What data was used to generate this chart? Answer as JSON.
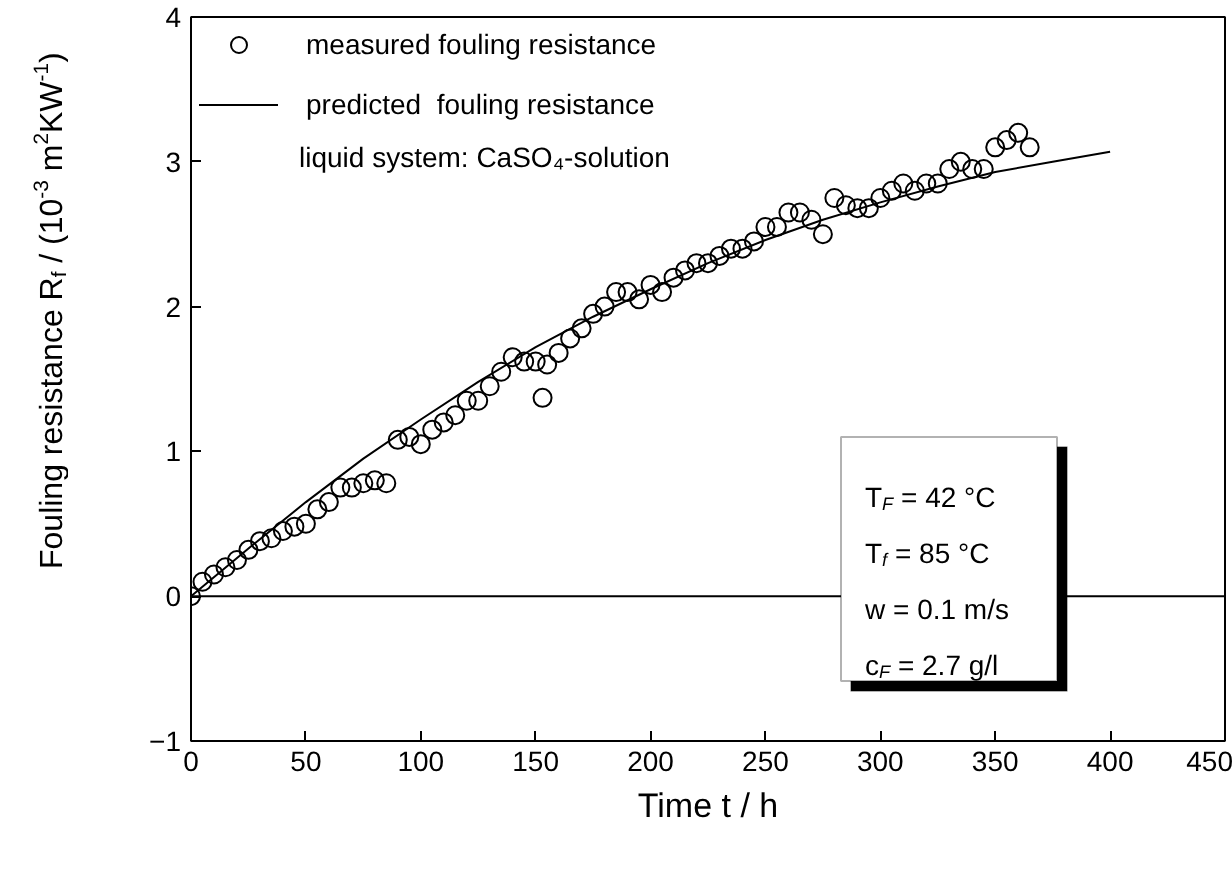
{
  "chart_data": {
    "type": "scatter",
    "xlabel": "Time t / h",
    "ylabel": "Fouling resistance R$_{f}$ / (10$^{-3}$ m$^{2}$KW$^{-1}$)",
    "xlim": [
      0,
      450
    ],
    "xticks": [
      0,
      50,
      100,
      150,
      200,
      250,
      300,
      350,
      400,
      450
    ],
    "ylim": [
      -1,
      4
    ],
    "yticks": [
      -1,
      0,
      1,
      2,
      3,
      4
    ],
    "grid": false,
    "legend": "top left",
    "ref_lines": [
      {
        "axis": "y",
        "value": 0,
        "color": "#000000"
      }
    ],
    "annotations": [
      "liquid system: CaSO₄-solution",
      "T$_{F}$ = 42  °C",
      "T$_{f}$ = 85 °C",
      "w = 0.1  m/s",
      "c$_{F}$ = 2.7 g/l"
    ],
    "series": [
      {
        "name": "measured fouling resistance",
        "color": "#000000",
        "marker": "circle",
        "x": [
          0,
          5,
          10,
          15,
          20,
          25,
          30,
          35,
          40,
          45,
          50,
          55,
          60,
          65,
          70,
          75,
          80,
          85,
          90,
          95,
          100,
          105,
          110,
          115,
          120,
          125,
          130,
          135,
          140,
          145,
          150,
          153,
          155,
          160,
          165,
          170,
          175,
          180,
          185,
          190,
          195,
          200,
          205,
          210,
          215,
          220,
          225,
          230,
          235,
          240,
          245,
          250,
          255,
          260,
          265,
          270,
          275,
          280,
          285,
          290,
          295,
          300,
          305,
          310,
          315,
          320,
          325,
          330,
          335,
          340,
          345,
          350,
          355,
          360,
          365
        ],
        "values": [
          0,
          0.1,
          0.15,
          0.2,
          0.25,
          0.32,
          0.38,
          0.4,
          0.45,
          0.48,
          0.5,
          0.6,
          0.65,
          0.75,
          0.75,
          0.78,
          0.8,
          0.78,
          1.08,
          1.1,
          1.05,
          1.15,
          1.2,
          1.25,
          1.35,
          1.35,
          1.45,
          1.55,
          1.65,
          1.62,
          1.62,
          1.37,
          1.6,
          1.68,
          1.78,
          1.85,
          1.95,
          2.0,
          2.1,
          2.1,
          2.05,
          2.15,
          2.1,
          2.2,
          2.25,
          2.3,
          2.3,
          2.35,
          2.4,
          2.4,
          2.45,
          2.55,
          2.55,
          2.65,
          2.65,
          2.6,
          2.5,
          2.75,
          2.7,
          2.68,
          2.68,
          2.75,
          2.8,
          2.85,
          2.8,
          2.85,
          2.85,
          2.95,
          3.0,
          2.95,
          2.95,
          3.1,
          3.15,
          3.2,
          3.1
        ]
      },
      {
        "name": "predicted  fouling resistance",
        "type": "line",
        "color": "#000000",
        "line_style": "solid",
        "marker": "none",
        "x": [
          0,
          25,
          50,
          75,
          100,
          125,
          150,
          175,
          200,
          225,
          250,
          275,
          300,
          325,
          350,
          375,
          400
        ],
        "values": [
          0,
          0.33,
          0.65,
          0.95,
          1.22,
          1.48,
          1.72,
          1.93,
          2.12,
          2.3,
          2.46,
          2.6,
          2.72,
          2.83,
          2.93,
          3.0,
          3.07
        ]
      }
    ]
  }
}
